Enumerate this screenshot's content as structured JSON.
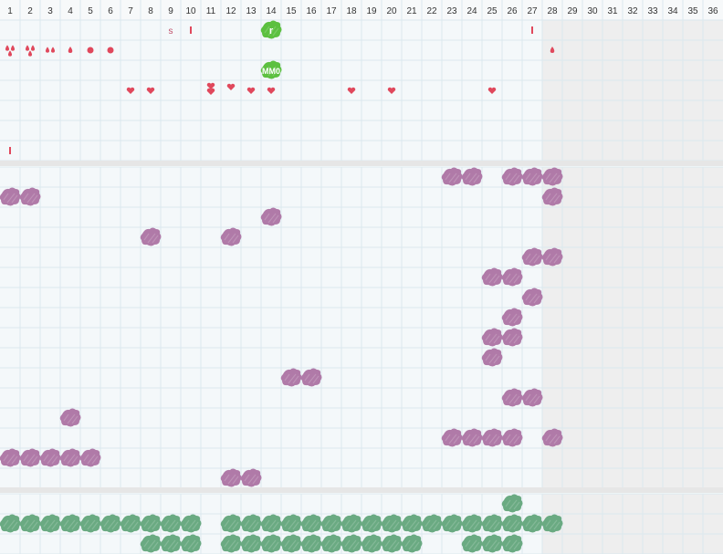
{
  "columns": [
    "1",
    "2",
    "3",
    "4",
    "5",
    "6",
    "7",
    "8",
    "9",
    "10",
    "11",
    "12",
    "13",
    "14",
    "15",
    "16",
    "17",
    "18",
    "19",
    "20",
    "21",
    "22",
    "23",
    "24",
    "25",
    "26",
    "27",
    "28",
    "29",
    "30",
    "31",
    "32",
    "33",
    "34",
    "35",
    "36"
  ],
  "active_columns": 27,
  "colors": {
    "grid": "#dbe8ee",
    "cell_bg": "#f4f8fa",
    "inactive_bg": "#eeeeee",
    "separator": "#e6e6e6",
    "marker_red": "#e0485c",
    "blob_purple": "#b07aa8",
    "blob_green": "#6aaa82",
    "tag_green": "#5cc040",
    "header_text": "#333333"
  },
  "sections": [
    {
      "name": "top",
      "rows": 7,
      "marks": [
        {
          "col": 9,
          "row": 1,
          "type": "text",
          "text": "s"
        },
        {
          "col": 10,
          "row": 1,
          "type": "bar"
        },
        {
          "col": 14,
          "row": 1,
          "type": "tag",
          "text": "r"
        },
        {
          "col": 27,
          "row": 1,
          "type": "bar"
        },
        {
          "col": 1,
          "row": 2,
          "type": "drops3"
        },
        {
          "col": 2,
          "row": 2,
          "type": "drops3"
        },
        {
          "col": 3,
          "row": 2,
          "type": "drops2"
        },
        {
          "col": 4,
          "row": 2,
          "type": "drop"
        },
        {
          "col": 5,
          "row": 2,
          "type": "dot"
        },
        {
          "col": 6,
          "row": 2,
          "type": "dot"
        },
        {
          "col": 28,
          "row": 2,
          "type": "drop"
        },
        {
          "col": 14,
          "row": 3,
          "type": "tag",
          "text": "MM0"
        },
        {
          "col": 7,
          "row": 4,
          "type": "heart"
        },
        {
          "col": 8,
          "row": 4,
          "type": "heart"
        },
        {
          "col": 11,
          "row": 4,
          "type": "hearts2"
        },
        {
          "col": 12,
          "row": 4,
          "type": "heart-high"
        },
        {
          "col": 13,
          "row": 4,
          "type": "heart"
        },
        {
          "col": 14,
          "row": 4,
          "type": "heart"
        },
        {
          "col": 18,
          "row": 4,
          "type": "heart"
        },
        {
          "col": 20,
          "row": 4,
          "type": "heart"
        },
        {
          "col": 25,
          "row": 4,
          "type": "heart"
        },
        {
          "col": 1,
          "row": 7,
          "type": "bar"
        }
      ]
    },
    {
      "name": "middle",
      "rows": 16,
      "marks": [
        {
          "col": 23,
          "row": 1,
          "type": "blob"
        },
        {
          "col": 24,
          "row": 1,
          "type": "blob"
        },
        {
          "col": 26,
          "row": 1,
          "type": "blob"
        },
        {
          "col": 27,
          "row": 1,
          "type": "blob"
        },
        {
          "col": 28,
          "row": 1,
          "type": "blob"
        },
        {
          "col": 1,
          "row": 2,
          "type": "blob"
        },
        {
          "col": 2,
          "row": 2,
          "type": "blob"
        },
        {
          "col": 28,
          "row": 2,
          "type": "blob"
        },
        {
          "col": 14,
          "row": 3,
          "type": "blob"
        },
        {
          "col": 8,
          "row": 4,
          "type": "blob"
        },
        {
          "col": 12,
          "row": 4,
          "type": "blob"
        },
        {
          "col": 27,
          "row": 5,
          "type": "blob"
        },
        {
          "col": 28,
          "row": 5,
          "type": "blob"
        },
        {
          "col": 25,
          "row": 6,
          "type": "blob"
        },
        {
          "col": 26,
          "row": 6,
          "type": "blob"
        },
        {
          "col": 27,
          "row": 7,
          "type": "blob"
        },
        {
          "col": 26,
          "row": 8,
          "type": "blob"
        },
        {
          "col": 25,
          "row": 9,
          "type": "blob"
        },
        {
          "col": 26,
          "row": 9,
          "type": "blob"
        },
        {
          "col": 25,
          "row": 10,
          "type": "blob"
        },
        {
          "col": 15,
          "row": 11,
          "type": "blob"
        },
        {
          "col": 16,
          "row": 11,
          "type": "blob"
        },
        {
          "col": 26,
          "row": 12,
          "type": "blob"
        },
        {
          "col": 27,
          "row": 12,
          "type": "blob"
        },
        {
          "col": 4,
          "row": 13,
          "type": "blob"
        },
        {
          "col": 23,
          "row": 14,
          "type": "blob"
        },
        {
          "col": 24,
          "row": 14,
          "type": "blob"
        },
        {
          "col": 25,
          "row": 14,
          "type": "blob"
        },
        {
          "col": 26,
          "row": 14,
          "type": "blob"
        },
        {
          "col": 28,
          "row": 14,
          "type": "blob"
        },
        {
          "col": 1,
          "row": 15,
          "type": "blob"
        },
        {
          "col": 2,
          "row": 15,
          "type": "blob"
        },
        {
          "col": 3,
          "row": 15,
          "type": "blob"
        },
        {
          "col": 4,
          "row": 15,
          "type": "blob"
        },
        {
          "col": 5,
          "row": 15,
          "type": "blob"
        },
        {
          "col": 12,
          "row": 16,
          "type": "blob"
        },
        {
          "col": 13,
          "row": 16,
          "type": "blob"
        }
      ]
    },
    {
      "name": "bottom",
      "rows": 3,
      "marks": [
        {
          "col": 26,
          "row": 1,
          "type": "blob"
        },
        {
          "col": 1,
          "row": 2,
          "type": "blob"
        },
        {
          "col": 2,
          "row": 2,
          "type": "blob"
        },
        {
          "col": 3,
          "row": 2,
          "type": "blob"
        },
        {
          "col": 4,
          "row": 2,
          "type": "blob"
        },
        {
          "col": 5,
          "row": 2,
          "type": "blob"
        },
        {
          "col": 6,
          "row": 2,
          "type": "blob"
        },
        {
          "col": 7,
          "row": 2,
          "type": "blob"
        },
        {
          "col": 8,
          "row": 2,
          "type": "blob"
        },
        {
          "col": 9,
          "row": 2,
          "type": "blob"
        },
        {
          "col": 10,
          "row": 2,
          "type": "blob"
        },
        {
          "col": 12,
          "row": 2,
          "type": "blob"
        },
        {
          "col": 13,
          "row": 2,
          "type": "blob"
        },
        {
          "col": 14,
          "row": 2,
          "type": "blob"
        },
        {
          "col": 15,
          "row": 2,
          "type": "blob"
        },
        {
          "col": 16,
          "row": 2,
          "type": "blob"
        },
        {
          "col": 17,
          "row": 2,
          "type": "blob"
        },
        {
          "col": 18,
          "row": 2,
          "type": "blob"
        },
        {
          "col": 19,
          "row": 2,
          "type": "blob"
        },
        {
          "col": 20,
          "row": 2,
          "type": "blob"
        },
        {
          "col": 21,
          "row": 2,
          "type": "blob"
        },
        {
          "col": 22,
          "row": 2,
          "type": "blob"
        },
        {
          "col": 23,
          "row": 2,
          "type": "blob"
        },
        {
          "col": 24,
          "row": 2,
          "type": "blob"
        },
        {
          "col": 25,
          "row": 2,
          "type": "blob"
        },
        {
          "col": 26,
          "row": 2,
          "type": "blob"
        },
        {
          "col": 27,
          "row": 2,
          "type": "blob"
        },
        {
          "col": 28,
          "row": 2,
          "type": "blob"
        },
        {
          "col": 8,
          "row": 3,
          "type": "blob"
        },
        {
          "col": 9,
          "row": 3,
          "type": "blob"
        },
        {
          "col": 10,
          "row": 3,
          "type": "blob"
        },
        {
          "col": 12,
          "row": 3,
          "type": "blob"
        },
        {
          "col": 13,
          "row": 3,
          "type": "blob"
        },
        {
          "col": 14,
          "row": 3,
          "type": "blob"
        },
        {
          "col": 15,
          "row": 3,
          "type": "blob"
        },
        {
          "col": 16,
          "row": 3,
          "type": "blob"
        },
        {
          "col": 17,
          "row": 3,
          "type": "blob"
        },
        {
          "col": 18,
          "row": 3,
          "type": "blob"
        },
        {
          "col": 19,
          "row": 3,
          "type": "blob"
        },
        {
          "col": 20,
          "row": 3,
          "type": "blob"
        },
        {
          "col": 21,
          "row": 3,
          "type": "blob"
        },
        {
          "col": 24,
          "row": 3,
          "type": "blob"
        },
        {
          "col": 25,
          "row": 3,
          "type": "blob"
        },
        {
          "col": 26,
          "row": 3,
          "type": "blob"
        }
      ]
    }
  ]
}
